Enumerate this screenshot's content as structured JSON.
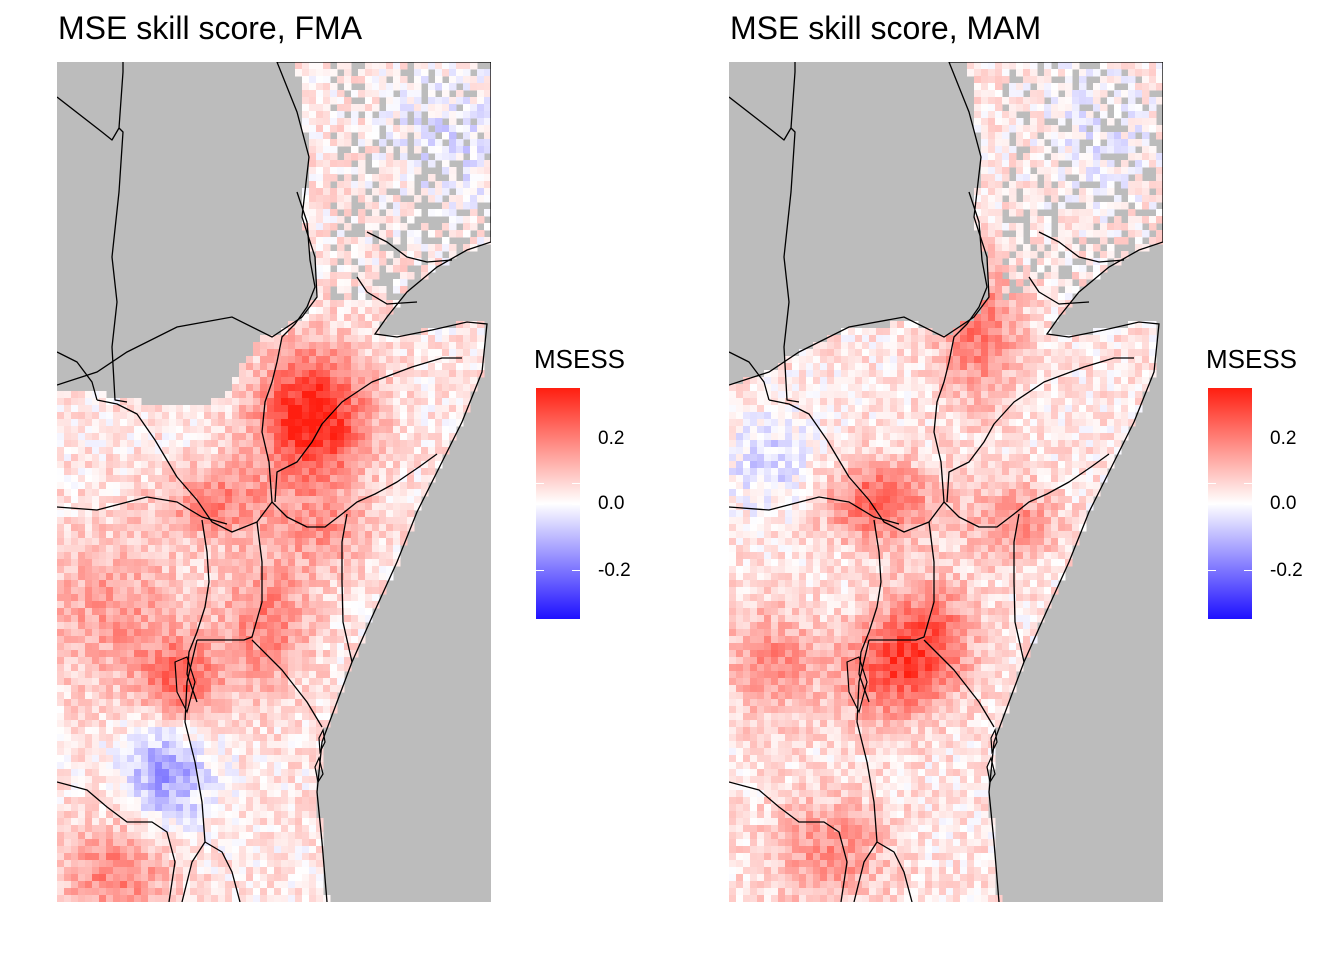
{
  "panels": [
    {
      "title": "MSE skill score, FMA",
      "season": "FMA"
    },
    {
      "title": "MSE skill score, MAM",
      "season": "MAM"
    }
  ],
  "legend": {
    "title": "MSESS",
    "colors": {
      "high": "#ff1e10",
      "mid": "#ffffff",
      "low": "#1e10ff"
    },
    "range": [
      -0.35,
      0.35
    ],
    "breaks": [
      {
        "value": 0.2,
        "label": "0.2"
      },
      {
        "value": 0.0,
        "label": "0.0"
      },
      {
        "value": -0.2,
        "label": "-0.2"
      }
    ]
  },
  "map_style": {
    "land_nodata_color": "#bcbcbc",
    "border_color": "#000000"
  }
}
